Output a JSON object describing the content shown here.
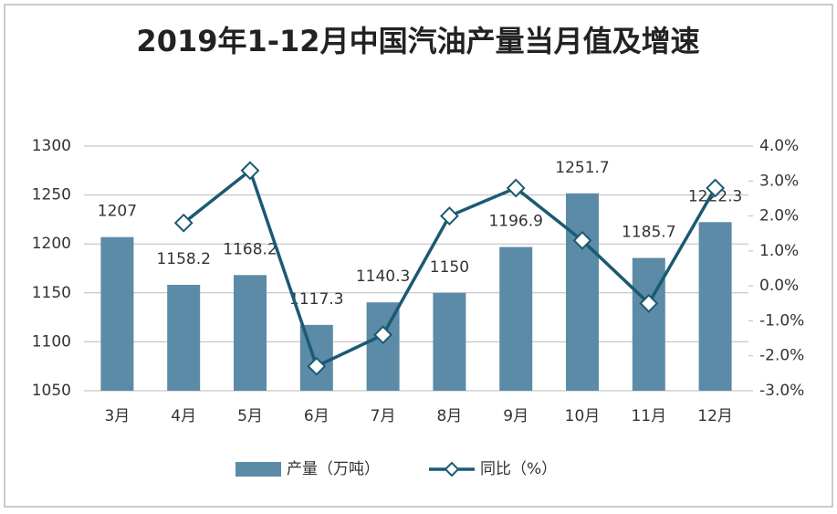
{
  "chart_data": {
    "type": "bar-line",
    "title": "2019年1-12月中国汽油产量当月值及增速",
    "categories": [
      "3月",
      "4月",
      "5月",
      "6月",
      "7月",
      "8月",
      "9月",
      "10月",
      "11月",
      "12月"
    ],
    "series": [
      {
        "name": "产量（万吨）",
        "type": "bar",
        "color": "#5b8ba6",
        "values": [
          1207,
          1158.2,
          1168.2,
          1117.3,
          1140.3,
          1150,
          1196.9,
          1251.7,
          1185.7,
          1222.3
        ]
      },
      {
        "name": "同比（%）",
        "type": "line",
        "axis": "y2",
        "color": "#1b5a72",
        "values": [
          null,
          1.8,
          3.3,
          -2.3,
          -1.4,
          2.0,
          2.8,
          1.3,
          -0.5,
          2.8
        ]
      }
    ],
    "ylim": [
      1050,
      1300
    ],
    "yticks": [
      1050,
      1100,
      1150,
      1200,
      1250,
      1300
    ],
    "y2lim": [
      -3,
      4
    ],
    "y2ticks": [
      {
        "value": -3,
        "label": "-3.0%"
      },
      {
        "value": -2,
        "label": "-2.0%"
      },
      {
        "value": -1,
        "label": "-1.0%"
      },
      {
        "value": 0,
        "label": "0.0%"
      },
      {
        "value": 1,
        "label": "1.0%"
      },
      {
        "value": 2,
        "label": "2.0%"
      },
      {
        "value": 3,
        "label": "3.0%"
      },
      {
        "value": 4,
        "label": "4.0%"
      }
    ],
    "grid": true,
    "legend": "bottom"
  }
}
